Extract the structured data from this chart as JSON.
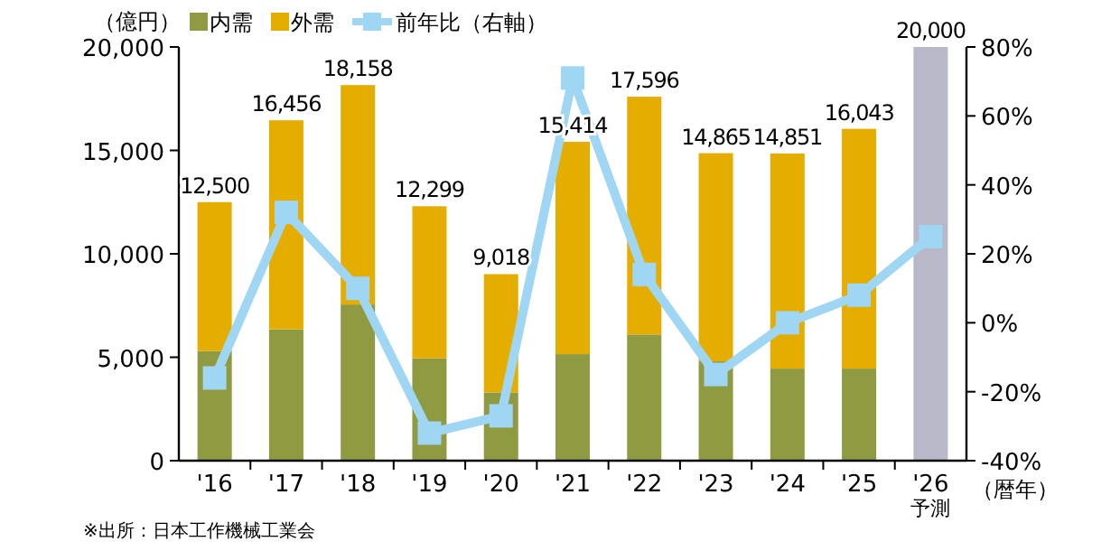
{
  "chart_data": {
    "type": "bar",
    "stacked": true,
    "ylabel": "（億円）",
    "xlabel": "（暦年）",
    "categories": [
      "'16",
      "'17",
      "'18",
      "'19",
      "'20",
      "'21",
      "'22",
      "'23",
      "'24",
      "'25",
      "'26"
    ],
    "series": [
      {
        "name": "内需",
        "color": "#8f9a41",
        "values": [
          5300,
          6350,
          7550,
          4950,
          3300,
          5150,
          6100,
          4800,
          4450,
          4450,
          null
        ]
      },
      {
        "name": "外需",
        "color": "#e5ad00",
        "values": [
          7200,
          10106,
          10608,
          7349,
          5718,
          10264,
          11496,
          10065,
          10401,
          11593,
          null
        ]
      },
      {
        "color": "#b9b8c9",
        "values": [
          null,
          null,
          null,
          null,
          null,
          null,
          null,
          null,
          null,
          null,
          20000
        ]
      },
      {
        "name": "前年比（右軸）",
        "type": "line",
        "axis": "y2",
        "color": "#9fd6f3",
        "values": [
          -16,
          32,
          10,
          -32,
          -27,
          71,
          14,
          -15,
          0,
          8,
          25
        ]
      }
    ],
    "marker": "square",
    "totals": [
      "12,500",
      "16,456",
      "18,158",
      "12,299",
      "9,018",
      "15,414",
      "17,596",
      "14,865",
      "14,851",
      "16,043",
      "20,000"
    ],
    "ylim": [
      0,
      20000
    ],
    "yticks": [
      0,
      {
        "value": 5000,
        "label": "5,000"
      },
      {
        "value": 10000,
        "label": "10,000"
      },
      {
        "value": 15000,
        "label": "15,000"
      },
      {
        "value": 20000,
        "label": "20,000"
      }
    ],
    "y2lim": [
      -40,
      80
    ],
    "y2ticks": [
      {
        "value": -40,
        "label": "-40%"
      },
      {
        "value": -20,
        "label": "-20%"
      },
      {
        "value": 0,
        "label": "0%"
      },
      {
        "value": 20,
        "label": "20%"
      },
      {
        "value": 40,
        "label": "40%"
      },
      {
        "value": 60,
        "label": "60%"
      },
      {
        "value": 80,
        "label": "80%"
      }
    ],
    "legend": "top",
    "annotations": [
      "予測",
      "※出所：日本工作機械工業会"
    ]
  }
}
